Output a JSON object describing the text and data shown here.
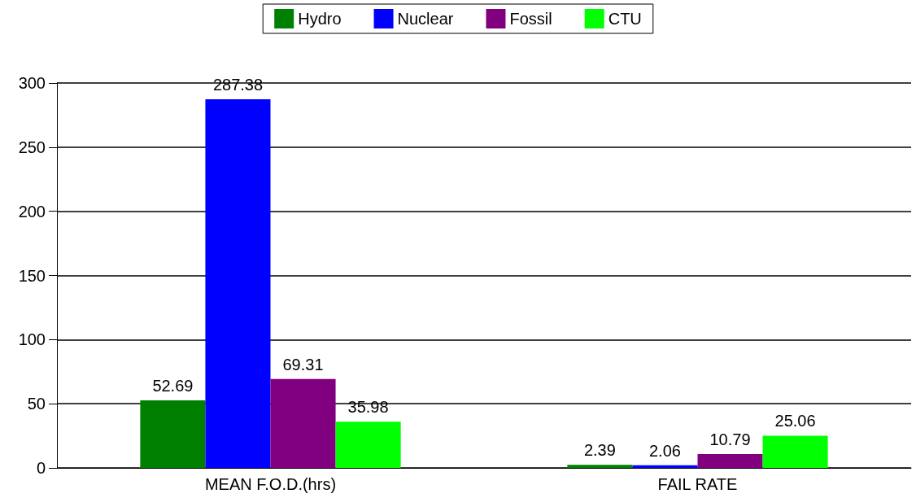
{
  "chart_data": {
    "type": "bar",
    "categories": [
      "MEAN F.O.D.(hrs)",
      "FAIL RATE"
    ],
    "series": [
      {
        "name": "Hydro",
        "color": "#008000",
        "values": [
          52.69,
          2.39
        ]
      },
      {
        "name": "Nuclear",
        "color": "#0000ff",
        "values": [
          287.38,
          2.06
        ]
      },
      {
        "name": "Fossil",
        "color": "#800080",
        "values": [
          69.31,
          10.79
        ]
      },
      {
        "name": "CTU",
        "color": "#00ff00",
        "values": [
          35.98,
          25.06
        ]
      }
    ],
    "ylim": [
      0,
      300
    ],
    "yticks": [
      0,
      50,
      100,
      150,
      200,
      250,
      300
    ],
    "grid": "y",
    "legend": "top",
    "data_labels": true
  }
}
